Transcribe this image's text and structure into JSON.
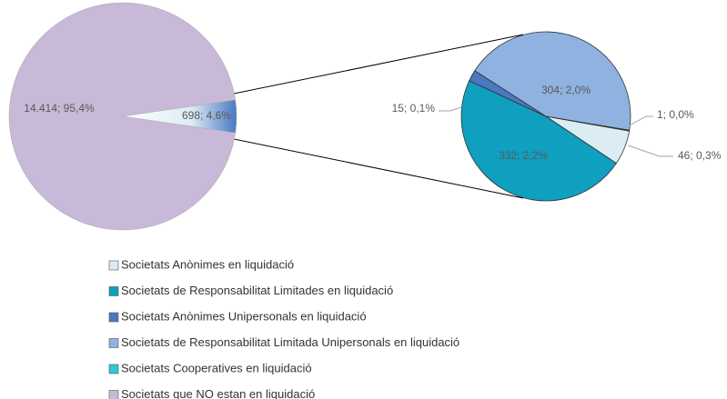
{
  "chart_data": {
    "type": "pie-of-pie",
    "categories": [
      "Societats Anònimes en liquidació",
      "Societats de Responsabilitat Limitades en liquidació",
      "Societats Anònimes Unipersonals en liquidació",
      "Societats de Responsabilitat Limitada Unipersonals en liquidació",
      "Societats Cooperatives en liquidació",
      "Societats que NO estan en liquidació"
    ],
    "values": [
      46,
      332,
      15,
      304,
      1,
      14414
    ],
    "value_labels": [
      "46; 0,3%",
      "332; 2,2%",
      "15; 0,1%",
      "304; 2,0%",
      "1; 0,0%",
      "14.414; 95,4%"
    ],
    "colors": [
      "#dcecf3",
      "#0f9fbf",
      "#4a78c2",
      "#8fb2e0",
      "#2fc7d6",
      "#c8b9d8"
    ],
    "other_value": 698,
    "other_label": "698; 4,6%",
    "legend": "bottom"
  }
}
